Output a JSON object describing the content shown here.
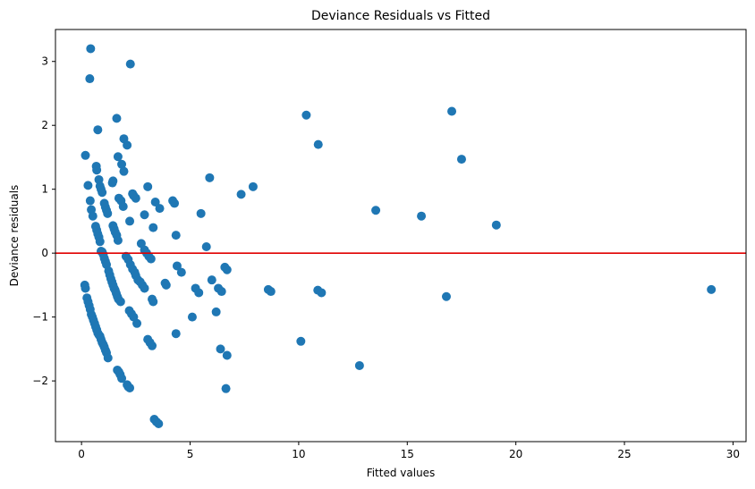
{
  "chart_data": {
    "type": "scatter",
    "title": "Deviance Residuals vs Fitted",
    "xlabel": "Fitted values",
    "ylabel": "Deviance residuals",
    "xlim": [
      -1.2,
      30.6
    ],
    "ylim": [
      -2.95,
      3.5
    ],
    "xticks": [
      0,
      5,
      10,
      15,
      20,
      25,
      30
    ],
    "yticks": [
      -2,
      -1,
      0,
      1,
      2,
      3
    ],
    "tick_labels_x": [
      "0",
      "5",
      "10",
      "15",
      "20",
      "25",
      "30"
    ],
    "tick_labels_y": [
      "−2",
      "−1",
      "0",
      "1",
      "2",
      "3"
    ],
    "grid": false,
    "marker_color": "#1f77b4",
    "reference_line": {
      "y": 0,
      "color": "#e00000"
    },
    "points": [
      [
        0.42,
        3.2
      ],
      [
        0.38,
        2.73
      ],
      [
        2.25,
        2.96
      ],
      [
        0.18,
        1.53
      ],
      [
        1.62,
        2.11
      ],
      [
        0.75,
        1.93
      ],
      [
        0.3,
        1.06
      ],
      [
        0.68,
        1.36
      ],
      [
        0.7,
        1.3
      ],
      [
        0.8,
        1.15
      ],
      [
        0.85,
        1.05
      ],
      [
        0.9,
        1.0
      ],
      [
        0.95,
        0.95
      ],
      [
        0.4,
        0.82
      ],
      [
        0.45,
        0.68
      ],
      [
        0.52,
        0.58
      ],
      [
        1.05,
        0.78
      ],
      [
        1.1,
        0.72
      ],
      [
        1.15,
        0.67
      ],
      [
        1.2,
        0.62
      ],
      [
        0.65,
        0.42
      ],
      [
        0.7,
        0.36
      ],
      [
        0.75,
        0.3
      ],
      [
        0.8,
        0.25
      ],
      [
        0.85,
        0.18
      ],
      [
        0.9,
        0.03
      ],
      [
        0.95,
        0.02
      ],
      [
        1.0,
        -0.02
      ],
      [
        1.05,
        -0.08
      ],
      [
        1.1,
        -0.13
      ],
      [
        1.15,
        -0.18
      ],
      [
        1.25,
        -0.28
      ],
      [
        1.3,
        -0.34
      ],
      [
        1.35,
        -0.4
      ],
      [
        1.4,
        -0.45
      ],
      [
        1.45,
        -0.5
      ],
      [
        1.5,
        -0.55
      ],
      [
        1.55,
        -0.58
      ],
      [
        1.6,
        -0.63
      ],
      [
        1.65,
        -0.68
      ],
      [
        1.7,
        -0.72
      ],
      [
        1.8,
        -0.76
      ],
      [
        0.15,
        -0.5
      ],
      [
        0.18,
        -0.55
      ],
      [
        0.25,
        -0.7
      ],
      [
        0.3,
        -0.76
      ],
      [
        0.35,
        -0.82
      ],
      [
        0.4,
        -0.88
      ],
      [
        0.45,
        -0.96
      ],
      [
        0.5,
        -1.0
      ],
      [
        0.55,
        -1.05
      ],
      [
        0.6,
        -1.1
      ],
      [
        0.65,
        -1.15
      ],
      [
        0.7,
        -1.2
      ],
      [
        0.75,
        -1.25
      ],
      [
        0.8,
        -1.28
      ],
      [
        0.85,
        -1.3
      ],
      [
        0.9,
        -1.35
      ],
      [
        0.95,
        -1.4
      ],
      [
        1.0,
        -1.43
      ],
      [
        1.05,
        -1.47
      ],
      [
        1.1,
        -1.52
      ],
      [
        1.15,
        -1.56
      ],
      [
        1.22,
        -1.64
      ],
      [
        1.65,
        -1.83
      ],
      [
        1.72,
        -1.86
      ],
      [
        1.78,
        -1.9
      ],
      [
        1.85,
        -1.96
      ],
      [
        2.1,
        -2.06
      ],
      [
        2.15,
        -2.09
      ],
      [
        2.22,
        -2.11
      ],
      [
        3.35,
        -2.6
      ],
      [
        3.45,
        -2.64
      ],
      [
        3.55,
        -2.67
      ],
      [
        1.95,
        1.79
      ],
      [
        2.1,
        1.69
      ],
      [
        1.68,
        1.51
      ],
      [
        1.85,
        1.39
      ],
      [
        1.95,
        1.28
      ],
      [
        1.45,
        1.13
      ],
      [
        1.42,
        1.1
      ],
      [
        1.72,
        0.86
      ],
      [
        1.82,
        0.82
      ],
      [
        1.92,
        0.73
      ],
      [
        1.45,
        0.43
      ],
      [
        1.5,
        0.38
      ],
      [
        1.55,
        0.33
      ],
      [
        1.62,
        0.28
      ],
      [
        1.68,
        0.2
      ],
      [
        2.22,
        0.5
      ],
      [
        2.35,
        0.93
      ],
      [
        2.4,
        0.9
      ],
      [
        2.5,
        0.86
      ],
      [
        3.05,
        1.04
      ],
      [
        2.9,
        0.6
      ],
      [
        3.3,
        0.4
      ],
      [
        3.4,
        0.8
      ],
      [
        3.6,
        0.7
      ],
      [
        2.75,
        0.15
      ],
      [
        2.9,
        0.05
      ],
      [
        3.0,
        0.0
      ],
      [
        3.1,
        -0.05
      ],
      [
        3.2,
        -0.09
      ],
      [
        2.05,
        -0.05
      ],
      [
        2.15,
        -0.1
      ],
      [
        2.25,
        -0.18
      ],
      [
        2.35,
        -0.25
      ],
      [
        2.45,
        -0.3
      ],
      [
        2.5,
        -0.35
      ],
      [
        2.6,
        -0.42
      ],
      [
        2.7,
        -0.45
      ],
      [
        2.8,
        -0.5
      ],
      [
        2.9,
        -0.55
      ],
      [
        2.2,
        -0.9
      ],
      [
        2.3,
        -0.95
      ],
      [
        2.4,
        -1.0
      ],
      [
        2.55,
        -1.1
      ],
      [
        3.25,
        -0.72
      ],
      [
        3.3,
        -0.76
      ],
      [
        3.05,
        -1.35
      ],
      [
        3.15,
        -1.4
      ],
      [
        3.25,
        -1.45
      ],
      [
        3.85,
        -0.47
      ],
      [
        3.9,
        -0.5
      ],
      [
        4.2,
        0.82
      ],
      [
        4.28,
        0.78
      ],
      [
        4.35,
        0.28
      ],
      [
        4.4,
        -0.2
      ],
      [
        4.6,
        -0.3
      ],
      [
        4.35,
        -1.26
      ],
      [
        5.1,
        -1.0
      ],
      [
        5.25,
        -0.55
      ],
      [
        5.4,
        -0.62
      ],
      [
        5.5,
        0.62
      ],
      [
        5.75,
        0.1
      ],
      [
        5.9,
        1.18
      ],
      [
        6.0,
        -0.42
      ],
      [
        6.2,
        -0.92
      ],
      [
        6.3,
        -0.55
      ],
      [
        6.45,
        -0.6
      ],
      [
        6.4,
        -1.5
      ],
      [
        6.6,
        -0.22
      ],
      [
        6.7,
        -0.26
      ],
      [
        6.7,
        -1.6
      ],
      [
        6.65,
        -2.12
      ],
      [
        7.35,
        0.92
      ],
      [
        7.9,
        1.04
      ],
      [
        8.6,
        -0.57
      ],
      [
        8.72,
        -0.6
      ],
      [
        10.1,
        -1.38
      ],
      [
        10.35,
        2.16
      ],
      [
        10.9,
        1.7
      ],
      [
        10.88,
        -0.58
      ],
      [
        11.05,
        -0.62
      ],
      [
        12.8,
        -1.76
      ],
      [
        13.55,
        0.67
      ],
      [
        15.65,
        0.58
      ],
      [
        16.8,
        -0.68
      ],
      [
        17.05,
        2.22
      ],
      [
        17.5,
        1.47
      ],
      [
        19.1,
        0.44
      ],
      [
        29.0,
        -0.57
      ]
    ]
  }
}
